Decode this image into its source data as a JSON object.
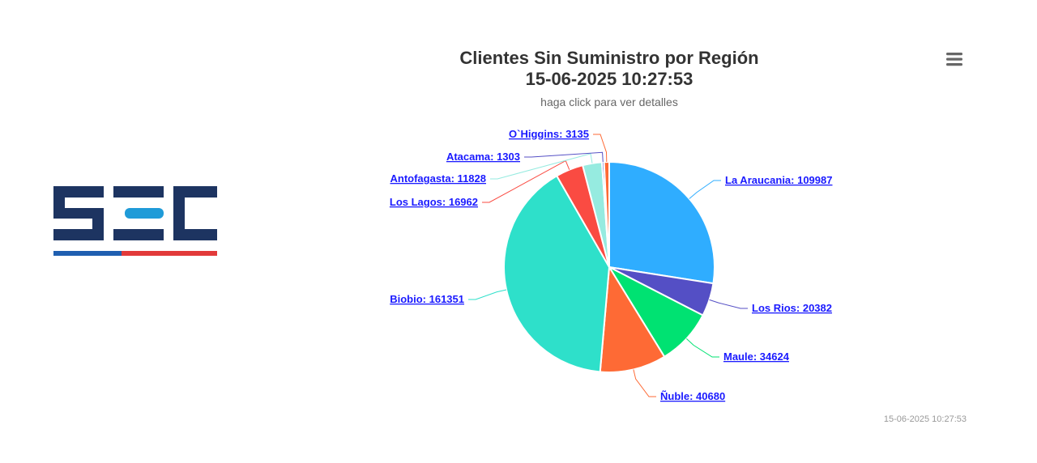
{
  "logo": {
    "brand_colors": {
      "navy": "#1d3461",
      "blue": "#1f5fb0",
      "red": "#e23a3a"
    }
  },
  "menu": {
    "icon": "hamburger-menu-icon"
  },
  "chart_data": {
    "type": "pie",
    "title": [
      "Clientes Sin Suministro por Región",
      "15-06-2025 10:27:53"
    ],
    "subtitle": "haga click para ver detalles",
    "credit": "15-06-2025 10:27:53",
    "slices": [
      {
        "name": "La Araucania",
        "value": 109987,
        "color": "#2fadff",
        "label": "La Araucania: 109987"
      },
      {
        "name": "Los Rios",
        "value": 20382,
        "color": "#544fc5",
        "label": "Los Rios: 20382"
      },
      {
        "name": "Maule",
        "value": 34624,
        "color": "#00e272",
        "label": "Maule: 34624"
      },
      {
        "name": "Ñuble",
        "value": 40680,
        "color": "#fe6a35",
        "label": "Ñuble: 40680"
      },
      {
        "name": "Biobio",
        "value": 161351,
        "color": "#2ee0ca",
        "label": "Biobio: 161351"
      },
      {
        "name": "Los Lagos",
        "value": 16962,
        "color": "#fa4b42",
        "label": "Los Lagos: 16962"
      },
      {
        "name": "Antofagasta",
        "value": 11828,
        "color": "#96ebe0",
        "label": "Antofagasta: 11828"
      },
      {
        "name": "Atacama",
        "value": 1303,
        "color": "#544fc5",
        "label": "Atacama: 1303"
      },
      {
        "name": "O`Higgins",
        "value": 3135,
        "color": "#fe6a35",
        "label": "O`Higgins: 3135"
      }
    ]
  }
}
